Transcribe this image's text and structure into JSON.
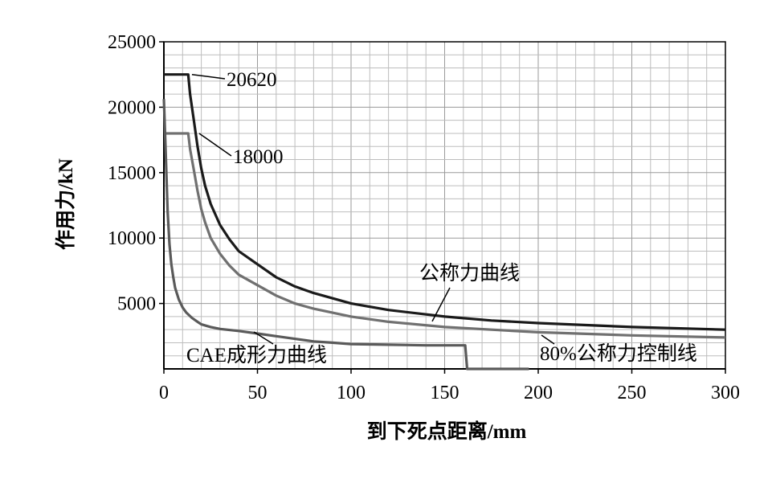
{
  "chart_data": {
    "type": "line",
    "xlabel": "到下死点距离/mm",
    "ylabel": "作用力/kN",
    "xlim": [
      0,
      300
    ],
    "ylim": [
      0,
      25000
    ],
    "xticks": [
      0,
      50,
      100,
      150,
      200,
      250,
      300
    ],
    "yticks": [
      5000,
      10000,
      15000,
      20000,
      25000
    ],
    "grid": true,
    "series": [
      {
        "name": "公称力曲线",
        "color": "#1a1a1a",
        "x": [
          0,
          12,
          13,
          14,
          16,
          18,
          20,
          22,
          25,
          30,
          35,
          40,
          50,
          60,
          70,
          80,
          100,
          120,
          150,
          175,
          200,
          250,
          300
        ],
        "y": [
          22500,
          22500,
          22500,
          21000,
          19000,
          17000,
          15300,
          14000,
          12600,
          11000,
          9900,
          9000,
          8000,
          7000,
          6300,
          5800,
          5000,
          4500,
          4000,
          3700,
          3500,
          3200,
          3000
        ]
      },
      {
        "name": "80%公称力控制线",
        "color": "#707070",
        "x": [
          0,
          12,
          13,
          14,
          16,
          18,
          20,
          22,
          25,
          30,
          35,
          40,
          50,
          60,
          70,
          80,
          100,
          120,
          150,
          175,
          200,
          250,
          300
        ],
        "y": [
          18000,
          18000,
          18000,
          16800,
          15200,
          13600,
          12200,
          11200,
          10000,
          8800,
          7900,
          7200,
          6400,
          5600,
          5000,
          4600,
          4000,
          3600,
          3200,
          3000,
          2800,
          2560,
          2400
        ]
      },
      {
        "name": "CAE成形力曲线",
        "color": "#5a5a5a",
        "x": [
          0,
          1,
          2,
          3,
          4,
          5,
          6,
          8,
          10,
          12,
          15,
          18,
          20,
          25,
          30,
          40,
          50,
          60,
          70,
          80,
          90,
          100,
          120,
          140,
          160,
          161,
          162,
          170,
          180,
          190,
          195
        ],
        "y": [
          20620,
          16500,
          12000,
          9500,
          8000,
          7000,
          6200,
          5300,
          4700,
          4300,
          3900,
          3600,
          3400,
          3200,
          3050,
          2900,
          2700,
          2500,
          2300,
          2100,
          2000,
          1900,
          1850,
          1800,
          1800,
          1800,
          0,
          0,
          0,
          0,
          0
        ]
      }
    ],
    "annotations": [
      {
        "text": "20620",
        "x": 15,
        "y": 22500
      },
      {
        "text": "18000",
        "x": 18,
        "y": 18000
      },
      {
        "text": "公称力曲线",
        "x": 145,
        "y": 4000
      },
      {
        "text": "80%公称力控制线",
        "x": 205,
        "y": 2700
      },
      {
        "text": "CAE成形力曲线",
        "x": 48,
        "y": 2700
      }
    ]
  }
}
